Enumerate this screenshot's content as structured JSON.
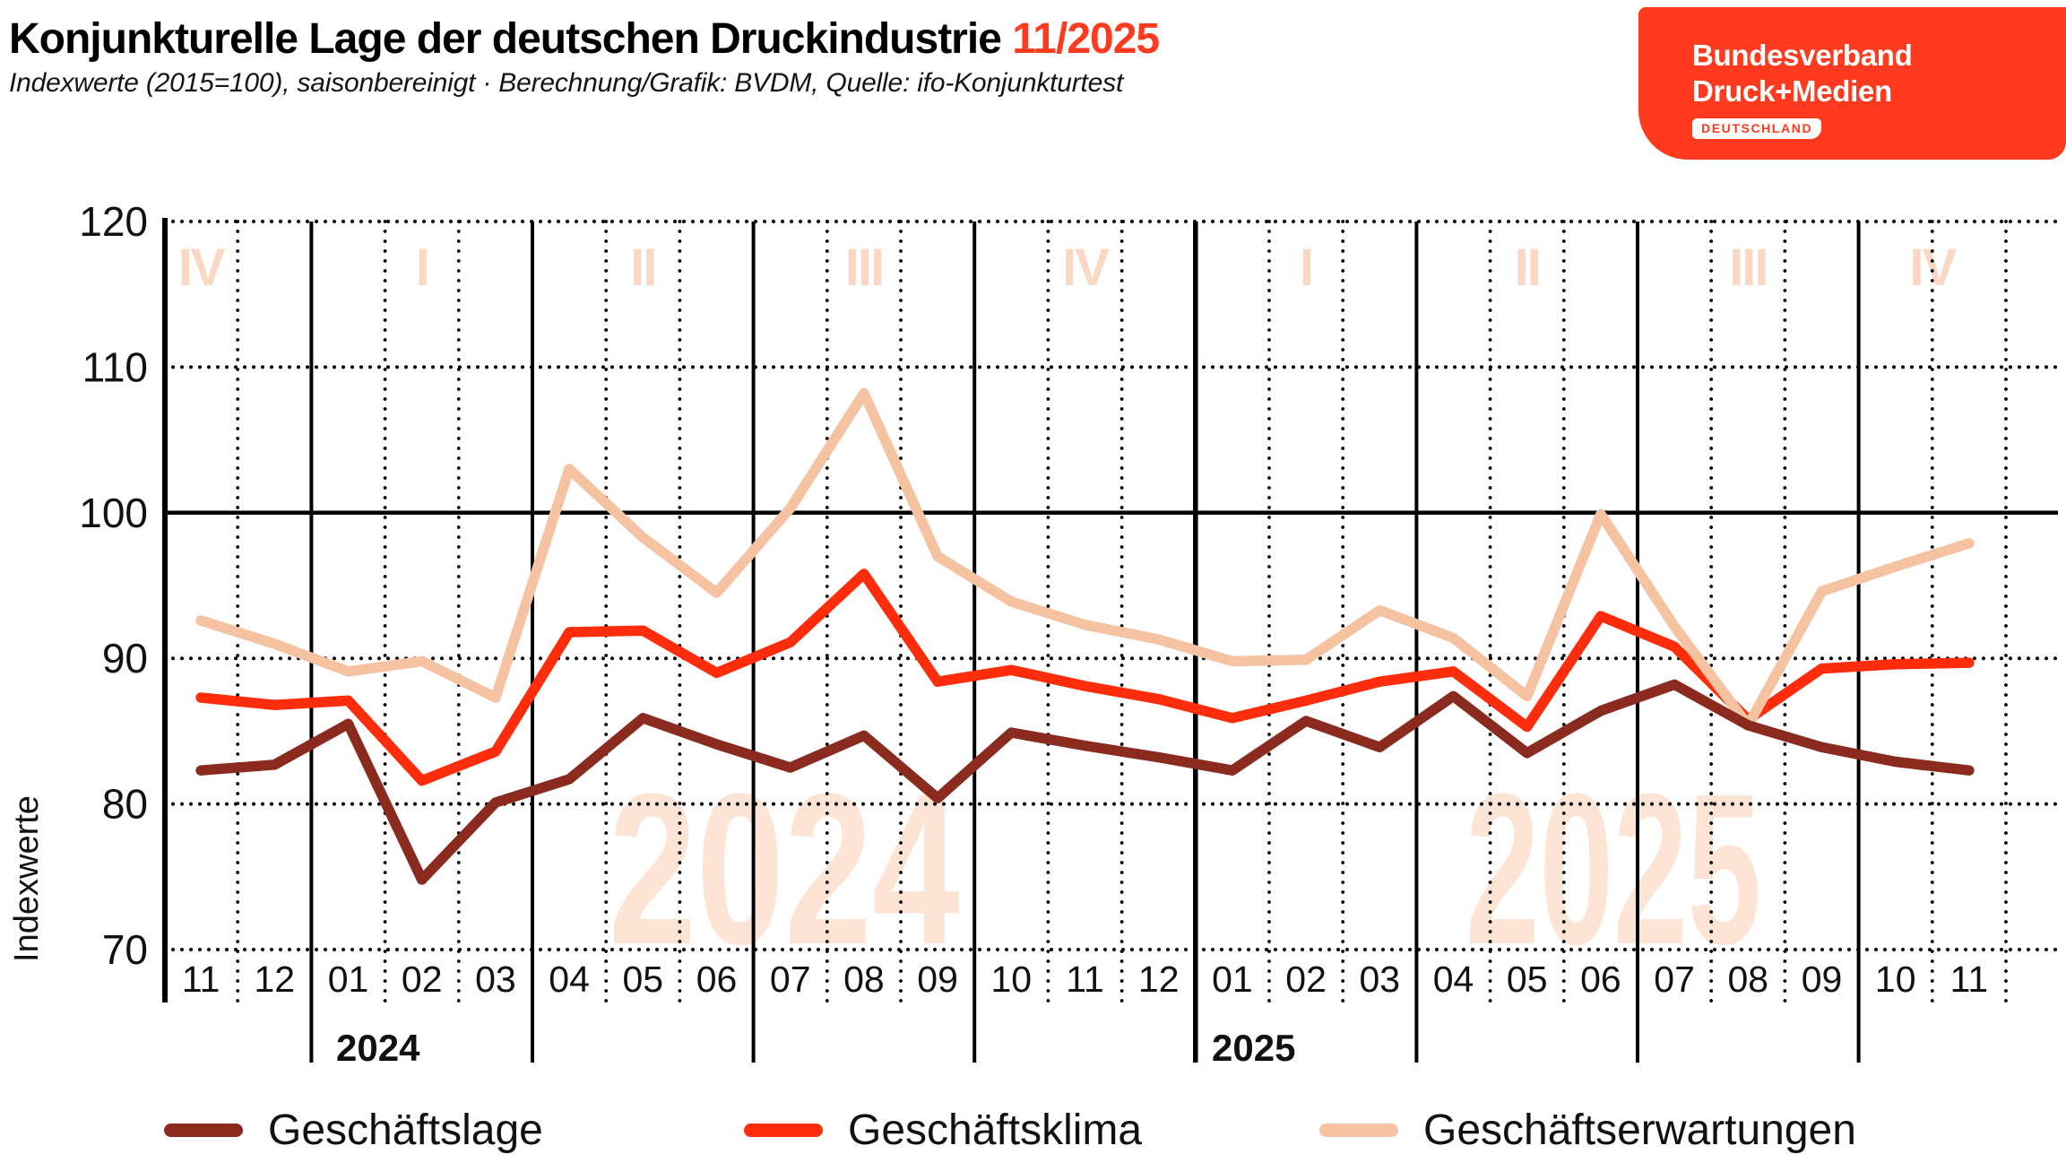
{
  "header": {
    "title": "Konjunkturelle Lage der deutschen Druckindustrie",
    "title_date": "11/2025",
    "subtitle": "Indexwerte (2015=100), saisonbereinigt · Berechnung/Grafik: BVDM, Quelle: ifo-Konjunkturtest"
  },
  "logo": {
    "line1": "Bundesverband",
    "line2": "Druck+Medien",
    "badge": "DEUTSCHLAND"
  },
  "colors": {
    "brand_red": "#ff3a1e",
    "title_accent": "#ff3a1e",
    "quarter_label": "#fbd8c3",
    "watermark": "#fde4d5",
    "grid": "#000000",
    "text": "#111111"
  },
  "chart_data": {
    "type": "line",
    "ylabel": "Indexwerte",
    "ylim": [
      70,
      120
    ],
    "yticks": [
      120,
      110,
      100,
      90,
      80,
      70
    ],
    "grid": "dotted, solid reference line at 100",
    "legend_position": "bottom",
    "x_months": [
      "11",
      "12",
      "01",
      "02",
      "03",
      "04",
      "05",
      "06",
      "07",
      "08",
      "09",
      "10",
      "11",
      "12",
      "01",
      "02",
      "03",
      "04",
      "05",
      "06",
      "07",
      "08",
      "09",
      "10",
      "11"
    ],
    "year_labels": [
      "2024",
      "2025"
    ],
    "watermarks": [
      "2024",
      "2025"
    ],
    "quarter_labels": [
      "IV",
      "I",
      "II",
      "III",
      "IV",
      "I",
      "II",
      "III",
      "IV"
    ],
    "series": [
      {
        "name": "Geschäftslage",
        "color": "#8b2a1e",
        "values": [
          82.3,
          82.7,
          85.5,
          74.8,
          80.1,
          81.7,
          85.9,
          84.1,
          82.5,
          84.7,
          80.4,
          84.9,
          84.0,
          83.2,
          82.3,
          85.7,
          83.9,
          87.4,
          83.5,
          86.4,
          88.2,
          85.4,
          83.9,
          82.9,
          82.3
        ]
      },
      {
        "name": "Geschäftsklima",
        "color": "#ff2d0c",
        "values": [
          87.3,
          86.8,
          87.1,
          81.6,
          83.6,
          91.8,
          91.9,
          89.0,
          91.1,
          95.8,
          88.4,
          89.2,
          88.1,
          87.2,
          85.9,
          87.1,
          88.4,
          89.1,
          85.3,
          92.9,
          90.8,
          85.8,
          89.3,
          89.6,
          89.7
        ]
      },
      {
        "name": "Geschäftserwartungen",
        "color": "#f5c2a2",
        "values": [
          92.6,
          91.0,
          89.1,
          89.8,
          87.3,
          103.0,
          98.3,
          94.5,
          100.3,
          108.2,
          97.0,
          93.9,
          92.3,
          91.3,
          89.8,
          89.9,
          93.3,
          91.4,
          87.4,
          99.9,
          92.2,
          85.4,
          94.6,
          96.3,
          97.9
        ]
      }
    ]
  }
}
